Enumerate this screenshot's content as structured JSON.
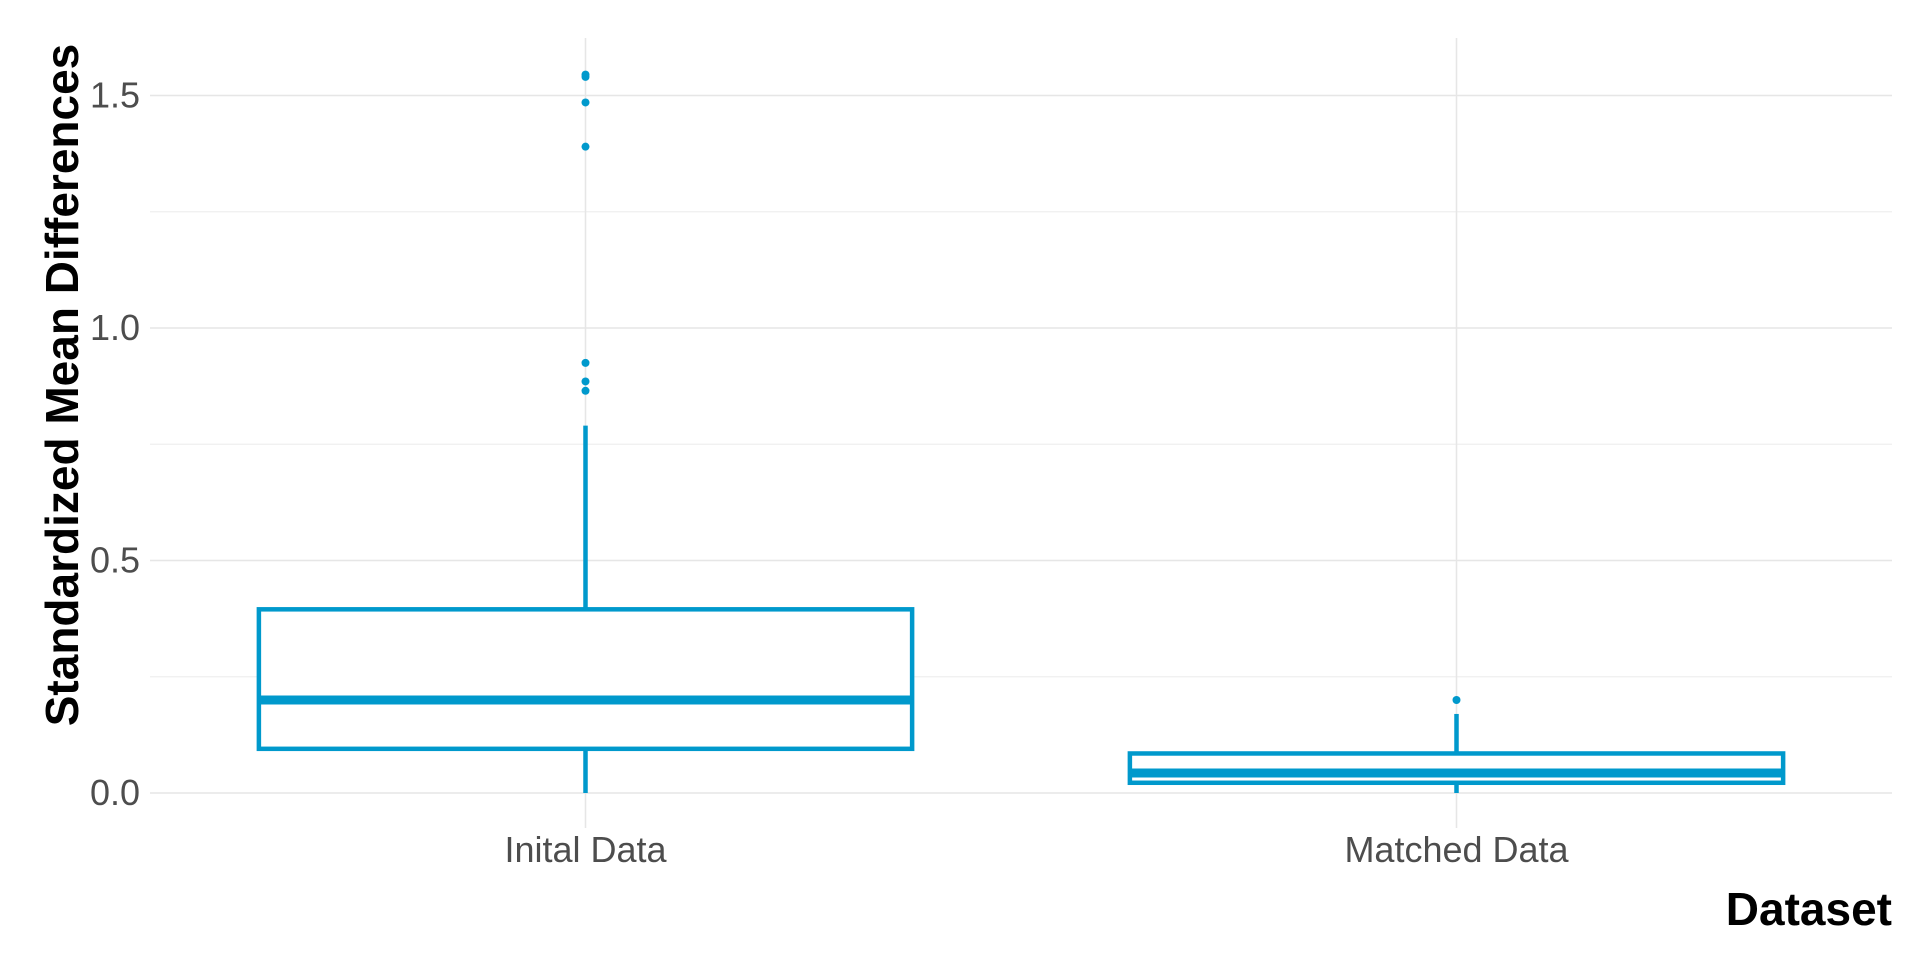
{
  "chart_data": {
    "type": "box",
    "xlabel": "Dataset",
    "ylabel": "Standardized Mean Differences",
    "ylim": [
      -0.08,
      1.63
    ],
    "y_ticks": [
      0.0,
      0.5,
      1.0,
      1.5
    ],
    "y_tick_labels": [
      "0.0",
      "0.5",
      "1.0",
      "1.5"
    ],
    "y_minor_ticks": [
      0.25,
      0.75,
      1.25
    ],
    "grid": true,
    "legend": "none",
    "color": "#0099CC",
    "categories": [
      "Inital Data",
      "Matched Data"
    ],
    "boxes": [
      {
        "name": "Inital Data",
        "min": 0.0,
        "q1": 0.095,
        "median": 0.2,
        "q3": 0.395,
        "max": 0.79,
        "outliers": [
          0.865,
          0.885,
          0.925,
          1.39,
          1.485,
          1.54,
          1.545
        ]
      },
      {
        "name": "Matched Data",
        "min": 0.0,
        "q1": 0.022,
        "median": 0.043,
        "q3": 0.085,
        "max": 0.17,
        "outliers": [
          0.2
        ]
      }
    ]
  }
}
